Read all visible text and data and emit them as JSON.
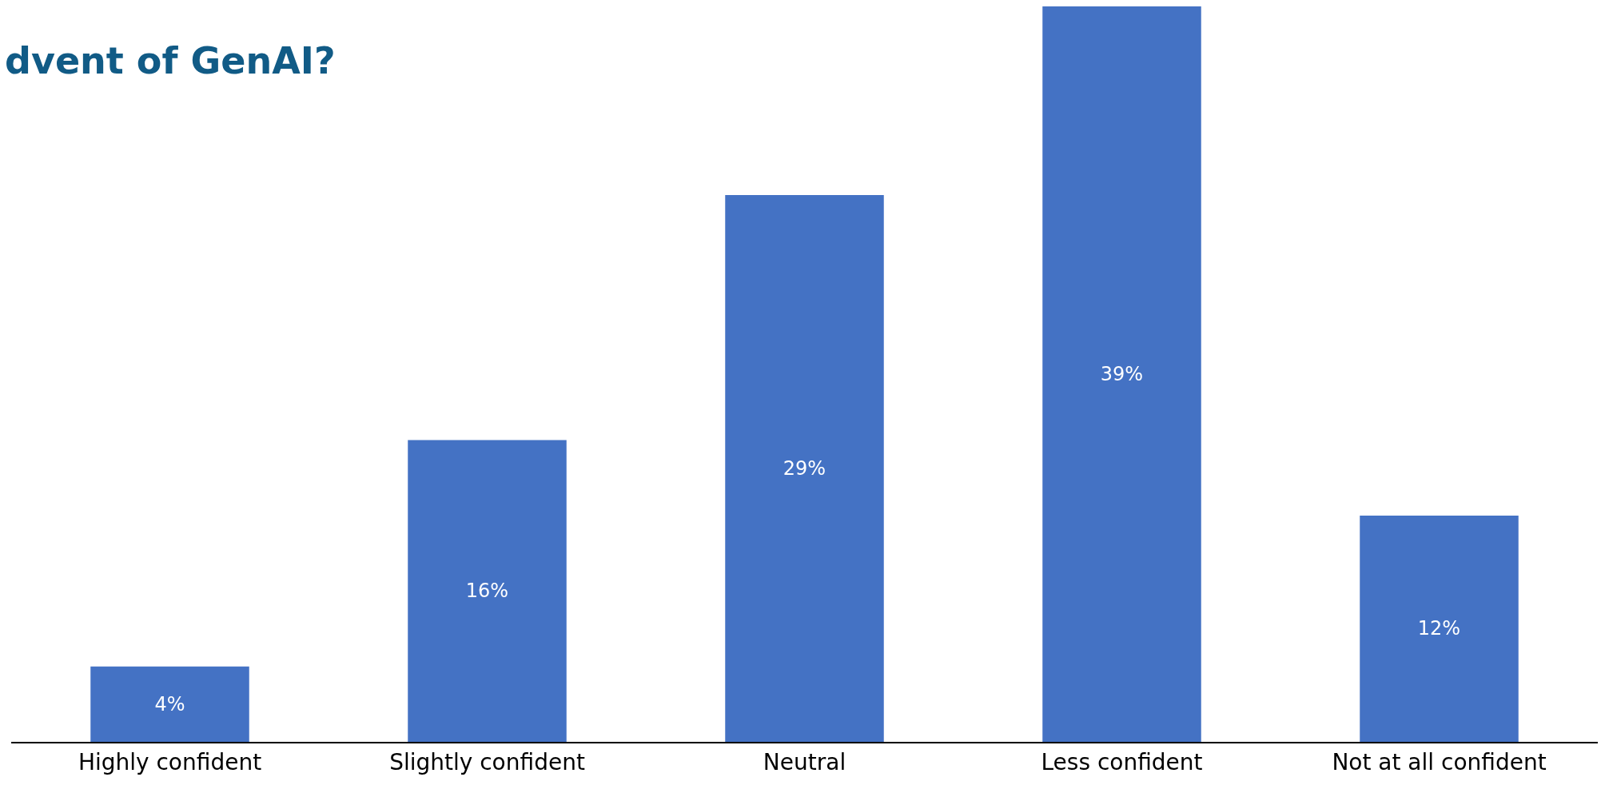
{
  "chart_data": {
    "type": "bar",
    "title": "dvent of GenAI?",
    "categories": [
      "Highly confident",
      "Slightly confident",
      "Neutral",
      "Less confident",
      "Not at all confident"
    ],
    "values": [
      4,
      16,
      29,
      39,
      12
    ],
    "value_labels": [
      "4%",
      "16%",
      "29%",
      "39%",
      "12%"
    ],
    "color": "#4472c4"
  }
}
